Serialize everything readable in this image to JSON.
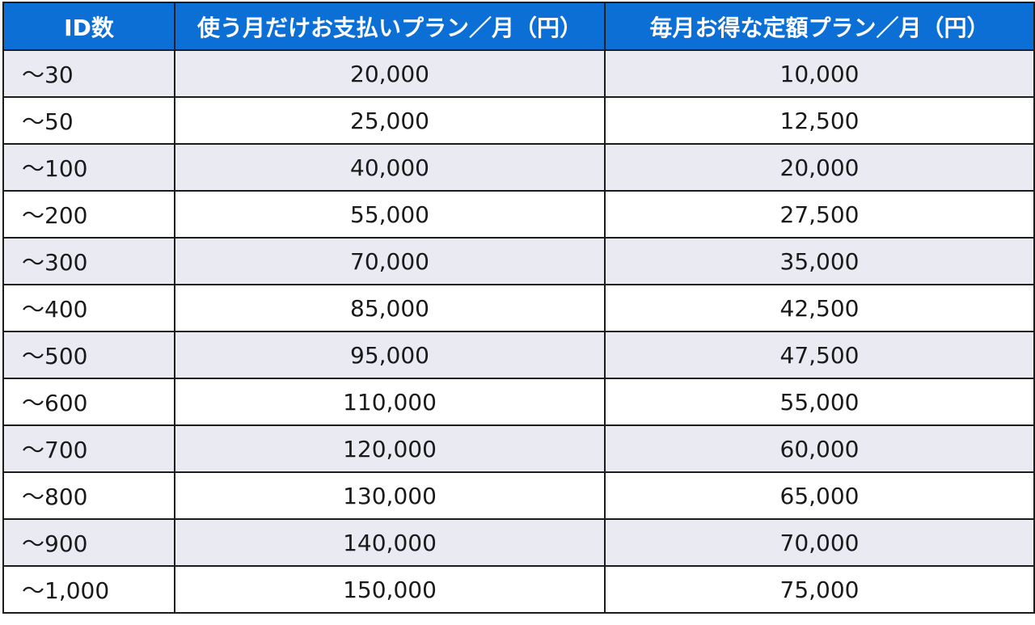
{
  "table": {
    "headers": [
      "ID数",
      "使う月だけお支払いプラン／月（円）",
      "毎月お得な定額プラン／月（円）"
    ],
    "rows": [
      [
        "～30",
        "20,000",
        "10,000"
      ],
      [
        "～50",
        "25,000",
        "12,500"
      ],
      [
        "～100",
        "40,000",
        "20,000"
      ],
      [
        "～200",
        "55,000",
        "27,500"
      ],
      [
        "～300",
        "70,000",
        "35,000"
      ],
      [
        "～400",
        "85,000",
        "42,500"
      ],
      [
        "～500",
        "95,000",
        "47,500"
      ],
      [
        "～600",
        "110,000",
        "55,000"
      ],
      [
        "～700",
        "120,000",
        "60,000"
      ],
      [
        "～800",
        "130,000",
        "65,000"
      ],
      [
        "～900",
        "140,000",
        "70,000"
      ],
      [
        "～1,000",
        "150,000",
        "75,000"
      ]
    ]
  },
  "colors": {
    "header_background": "#0b6fd6",
    "header_text": "#ffffff",
    "stripe_row": "#e9eaf2",
    "plain_row": "#ffffff",
    "border": "#1c1c1c"
  }
}
